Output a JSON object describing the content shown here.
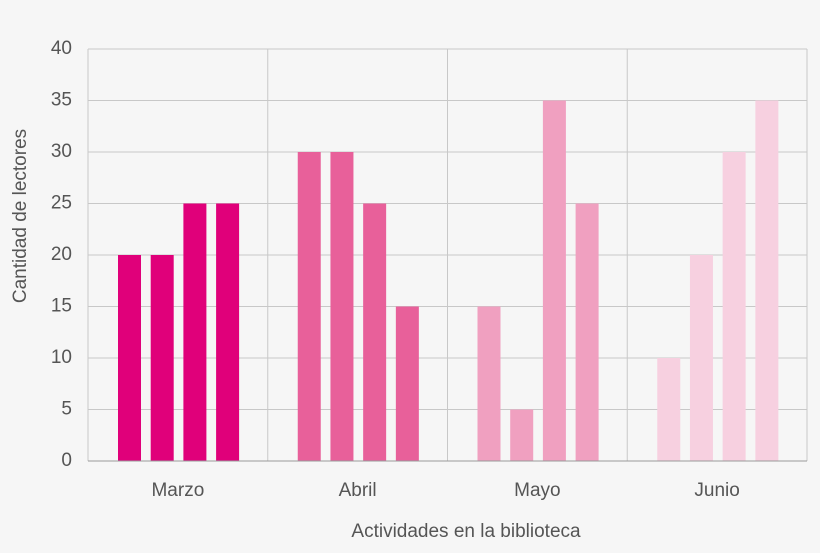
{
  "chart_data": {
    "type": "grouped-bar",
    "x_label": "Actividades en la biblioteca",
    "y_label": "Cantidad de lectores",
    "groups": [
      {
        "label": "Marzo",
        "color": "#e0007a",
        "values": [
          20,
          20,
          25,
          25
        ]
      },
      {
        "label": "Abril",
        "color": "#e8609a",
        "values": [
          30,
          30,
          25,
          15
        ]
      },
      {
        "label": "Mayo",
        "color": "#f0a0c0",
        "values": [
          15,
          5,
          35,
          25
        ]
      },
      {
        "label": "Junio",
        "color": "#f7d0e0",
        "values": [
          10,
          20,
          30,
          35
        ]
      }
    ],
    "ylim": [
      0,
      40
    ],
    "yticks": [
      0,
      5,
      10,
      15,
      20,
      25,
      30,
      35,
      40
    ],
    "grid": true
  }
}
